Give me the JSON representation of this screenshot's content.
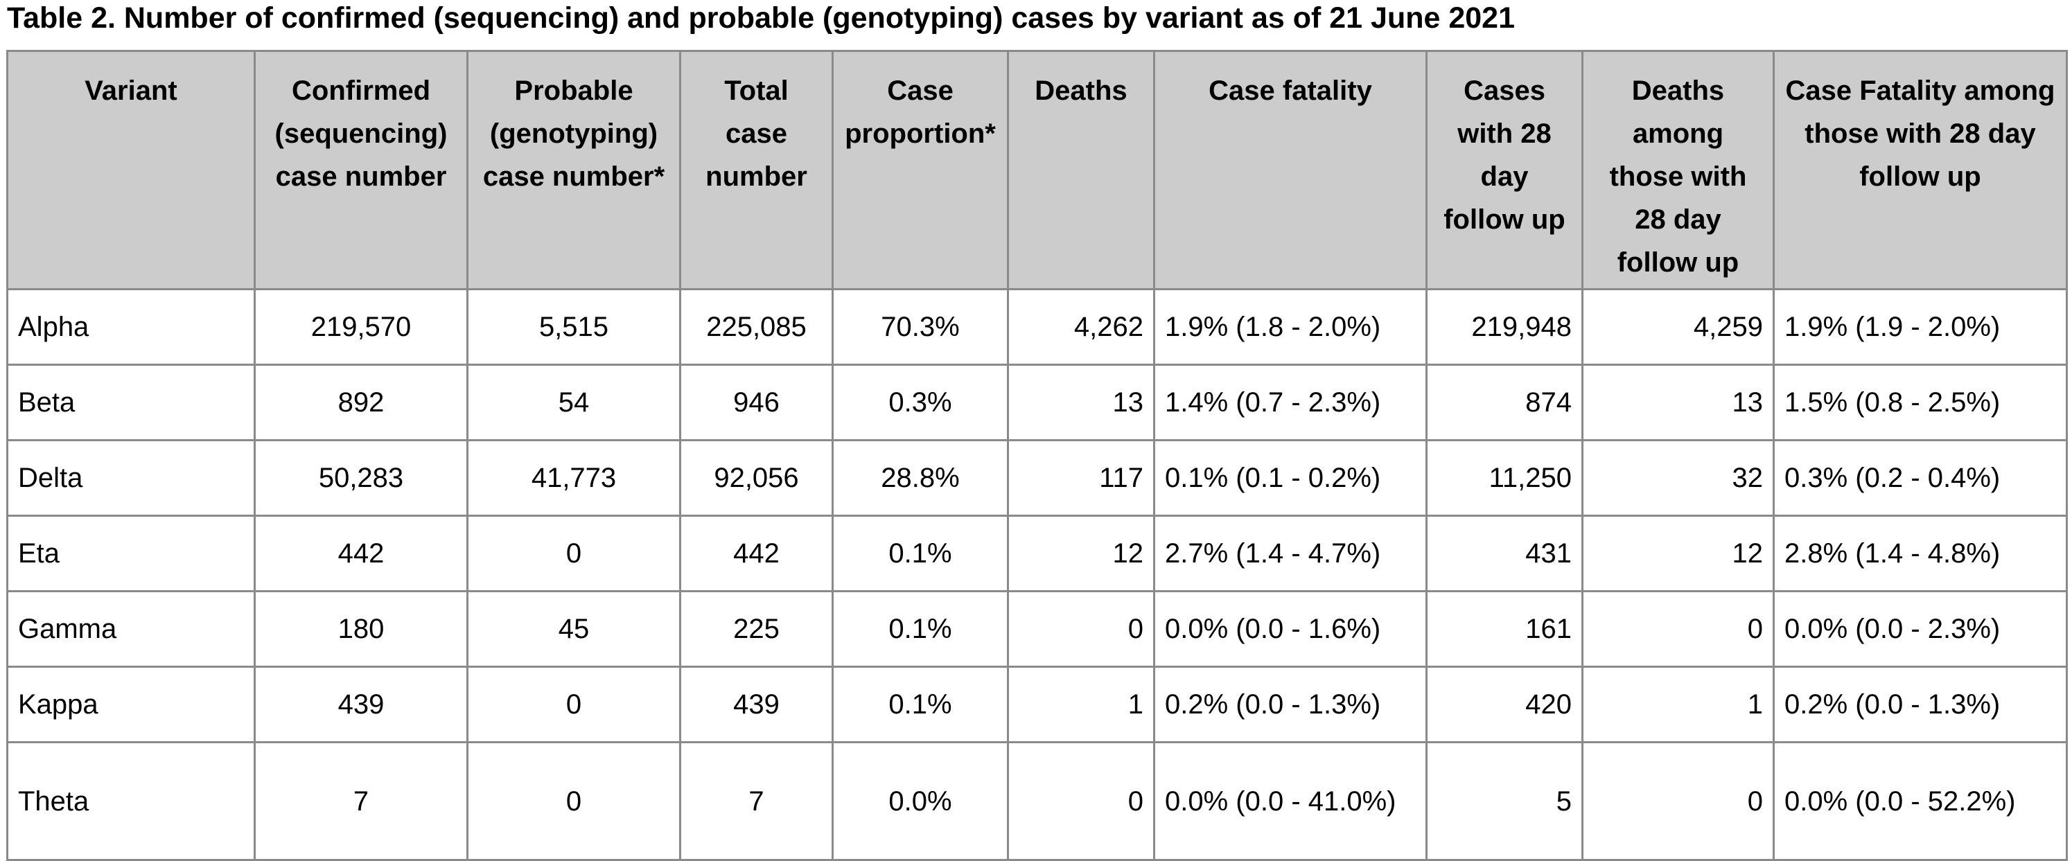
{
  "caption": "Table 2. Number of confirmed (sequencing) and probable (genotyping) cases by variant as of 21 June 2021",
  "headers": [
    "Variant",
    "Confirmed (sequencing) case number",
    "Probable (genotyping) case number*",
    "Total case number",
    "Case proportion*",
    "Deaths",
    "Case fatality",
    "Cases with 28 day follow up",
    "Deaths among those with 28 day follow up",
    "Case Fatality among those with 28 day follow up"
  ],
  "rows": [
    [
      "Alpha",
      "219,570",
      "5,515",
      "225,085",
      "70.3%",
      "4,262",
      "1.9% (1.8 - 2.0%)",
      "219,948",
      "4,259",
      "1.9% (1.9 - 2.0%)"
    ],
    [
      "Beta",
      "892",
      "54",
      "946",
      "0.3%",
      "13",
      "1.4% (0.7 - 2.3%)",
      "874",
      "13",
      "1.5% (0.8 - 2.5%)"
    ],
    [
      "Delta",
      "50,283",
      "41,773",
      "92,056",
      "28.8%",
      "117",
      "0.1% (0.1 - 0.2%)",
      "11,250",
      "32",
      "0.3% (0.2 - 0.4%)"
    ],
    [
      "Eta",
      "442",
      "0",
      "442",
      "0.1%",
      "12",
      "2.7% (1.4 - 4.7%)",
      "431",
      "12",
      "2.8% (1.4 - 4.8%)"
    ],
    [
      "Gamma",
      "180",
      "45",
      "225",
      "0.1%",
      "0",
      "0.0% (0.0 - 1.6%)",
      "161",
      "0",
      "0.0% (0.0 - 2.3%)"
    ],
    [
      "Kappa",
      "439",
      "0",
      "439",
      "0.1%",
      "1",
      "0.2% (0.0 - 1.3%)",
      "420",
      "1",
      "0.2% (0.0 - 1.3%)"
    ],
    [
      "Theta",
      "7",
      "0",
      "7",
      "0.0%",
      "0",
      "0.0% (0.0 - 41.0%)",
      "5",
      "0",
      "0.0% (0.0 - 52.2%)"
    ]
  ]
}
